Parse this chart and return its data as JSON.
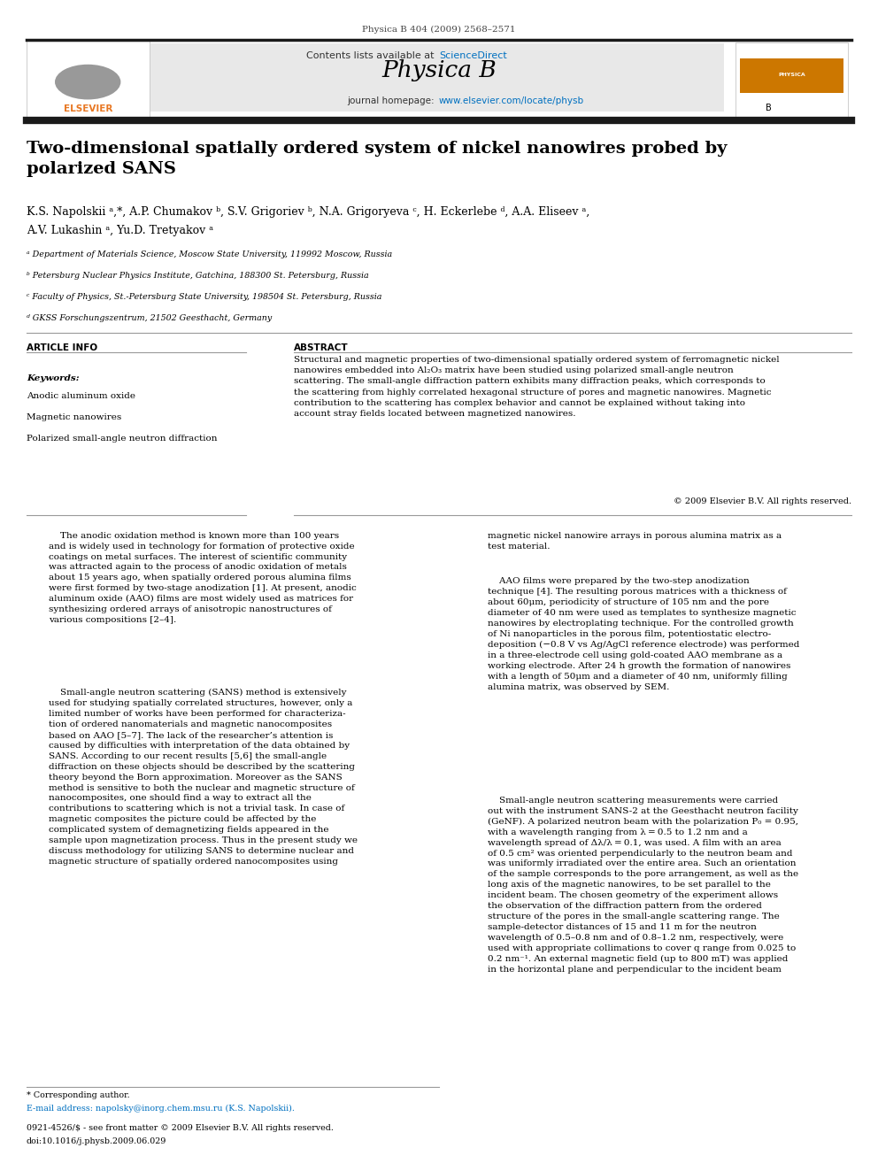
{
  "page_width": 9.92,
  "page_height": 13.23,
  "bg_color": "#ffffff",
  "top_citation": "Physica B 404 (2009) 2568–2571",
  "journal_header_bg": "#e8e8e8",
  "sciencedirect_color": "#0070c0",
  "journal_name": "Physica B",
  "homepage_url_color": "#0070c0",
  "thick_bar_color": "#1a1a1a",
  "article_title": "Two-dimensional spatially ordered system of nickel nanowires probed by\npolarized SANS",
  "authors_line1": "K.S. Napolskii ᵃ,*, A.P. Chumakov ᵇ, S.V. Grigoriev ᵇ, N.A. Grigoryeva ᶜ, H. Eckerlebe ᵈ, A.A. Eliseev ᵃ,",
  "authors_line2": "A.V. Lukashin ᵃ, Yu.D. Tretyakov ᵃ",
  "affil_a": "ᵃ Department of Materials Science, Moscow State University, 119992 Moscow, Russia",
  "affil_b": "ᵇ Petersburg Nuclear Physics Institute, Gatchina, 188300 St. Petersburg, Russia",
  "affil_c": "ᶜ Faculty of Physics, St.-Petersburg State University, 198504 St. Petersburg, Russia",
  "affil_d": "ᵈ GKSS Forschungszentrum, 21502 Geesthacht, Germany",
  "article_info_header": "ARTICLE INFO",
  "abstract_header": "ABSTRACT",
  "keywords_label": "Keywords:",
  "keyword1": "Anodic aluminum oxide",
  "keyword2": "Magnetic nanowires",
  "keyword3": "Polarized small-angle neutron diffraction",
  "abstract_text": "Structural and magnetic properties of two-dimensional spatially ordered system of ferromagnetic nickel\nnanowires embedded into Al₂O₃ matrix have been studied using polarized small-angle neutron\nscattering. The small-angle diffraction pattern exhibits many diffraction peaks, which corresponds to\nthe scattering from highly correlated hexagonal structure of pores and magnetic nanowires. Magnetic\ncontribution to the scattering has complex behavior and cannot be explained without taking into\naccount stray fields located between magnetized nanowires.",
  "copyright_line": "© 2009 Elsevier B.V. All rights reserved.",
  "body_col1_para1": "    The anodic oxidation method is known more than 100 years\nand is widely used in technology for formation of protective oxide\ncoatings on metal surfaces. The interest of scientific community\nwas attracted again to the process of anodic oxidation of metals\nabout 15 years ago, when spatially ordered porous alumina films\nwere first formed by two-stage anodization [1]. At present, anodic\naluminum oxide (AAO) films are most widely used as matrices for\nsynthesizing ordered arrays of anisotropic nanostructures of\nvarious compositions [2–4].",
  "body_col1_para2": "    Small-angle neutron scattering (SANS) method is extensively\nused for studying spatially correlated structures, however, only a\nlimited number of works have been performed for characteriza-\ntion of ordered nanomaterials and magnetic nanocomposites\nbased on AAO [5–7]. The lack of the researcher’s attention is\ncaused by difficulties with interpretation of the data obtained by\nSANS. According to our recent results [5,6] the small-angle\ndiffraction on these objects should be described by the scattering\ntheory beyond the Born approximation. Moreover as the SANS\nmethod is sensitive to both the nuclear and magnetic structure of\nnanocomposites, one should find a way to extract all the\ncontributions to scattering which is not a trivial task. In case of\nmagnetic composites the picture could be affected by the\ncomplicated system of demagnetizing fields appeared in the\nsample upon magnetization process. Thus in the present study we\ndiscuss methodology for utilizing SANS to determine nuclear and\nmagnetic structure of spatially ordered nanocomposites using",
  "body_col2_para1": "magnetic nickel nanowire arrays in porous alumina matrix as a\ntest material.",
  "body_col2_para2": "    AAO films were prepared by the two-step anodization\ntechnique [4]. The resulting porous matrices with a thickness of\nabout 60μm, periodicity of structure of 105 nm and the pore\ndiameter of 40 nm were used as templates to synthesize magnetic\nnanowires by electroplating technique. For the controlled growth\nof Ni nanoparticles in the porous film, potentiostatic electro-\ndeposition (−0.8 V vs Ag/AgCl reference electrode) was performed\nin a three-electrode cell using gold-coated AAO membrane as a\nworking electrode. After 24 h growth the formation of nanowires\nwith a length of 50μm and a diameter of 40 nm, uniformly filling\nalumina matrix, was observed by SEM.",
  "body_col2_para3": "    Small-angle neutron scattering measurements were carried\nout with the instrument SANS-2 at the Geesthacht neutron facility\n(GeNF). A polarized neutron beam with the polarization P₀ = 0.95,\nwith a wavelength ranging from λ = 0.5 to 1.2 nm and a\nwavelength spread of Δλ/λ = 0.1, was used. A film with an area\nof 0.5 cm² was oriented perpendicularly to the neutron beam and\nwas uniformly irradiated over the entire area. Such an orientation\nof the sample corresponds to the pore arrangement, as well as the\nlong axis of the magnetic nanowires, to be set parallel to the\nincident beam. The chosen geometry of the experiment allows\nthe observation of the diffraction pattern from the ordered\nstructure of the pores in the small-angle scattering range. The\nsample-detector distances of 15 and 11 m for the neutron\nwavelength of 0.5–0.8 nm and of 0.8–1.2 nm, respectively, were\nused with appropriate collimations to cover q range from 0.025 to\n0.2 nm⁻¹. An external magnetic field (up to 800 mT) was applied\nin the horizontal plane and perpendicular to the incident beam",
  "footer_line1": "* Corresponding author.",
  "footer_line2": "E-mail address: napolsky@inorg.chem.msu.ru (K.S. Napolskii).",
  "footer_line3": "0921-4526/$ - see front matter © 2009 Elsevier B.V. All rights reserved.",
  "footer_line4": "doi:10.1016/j.physb.2009.06.029",
  "divider_color": "#999999"
}
